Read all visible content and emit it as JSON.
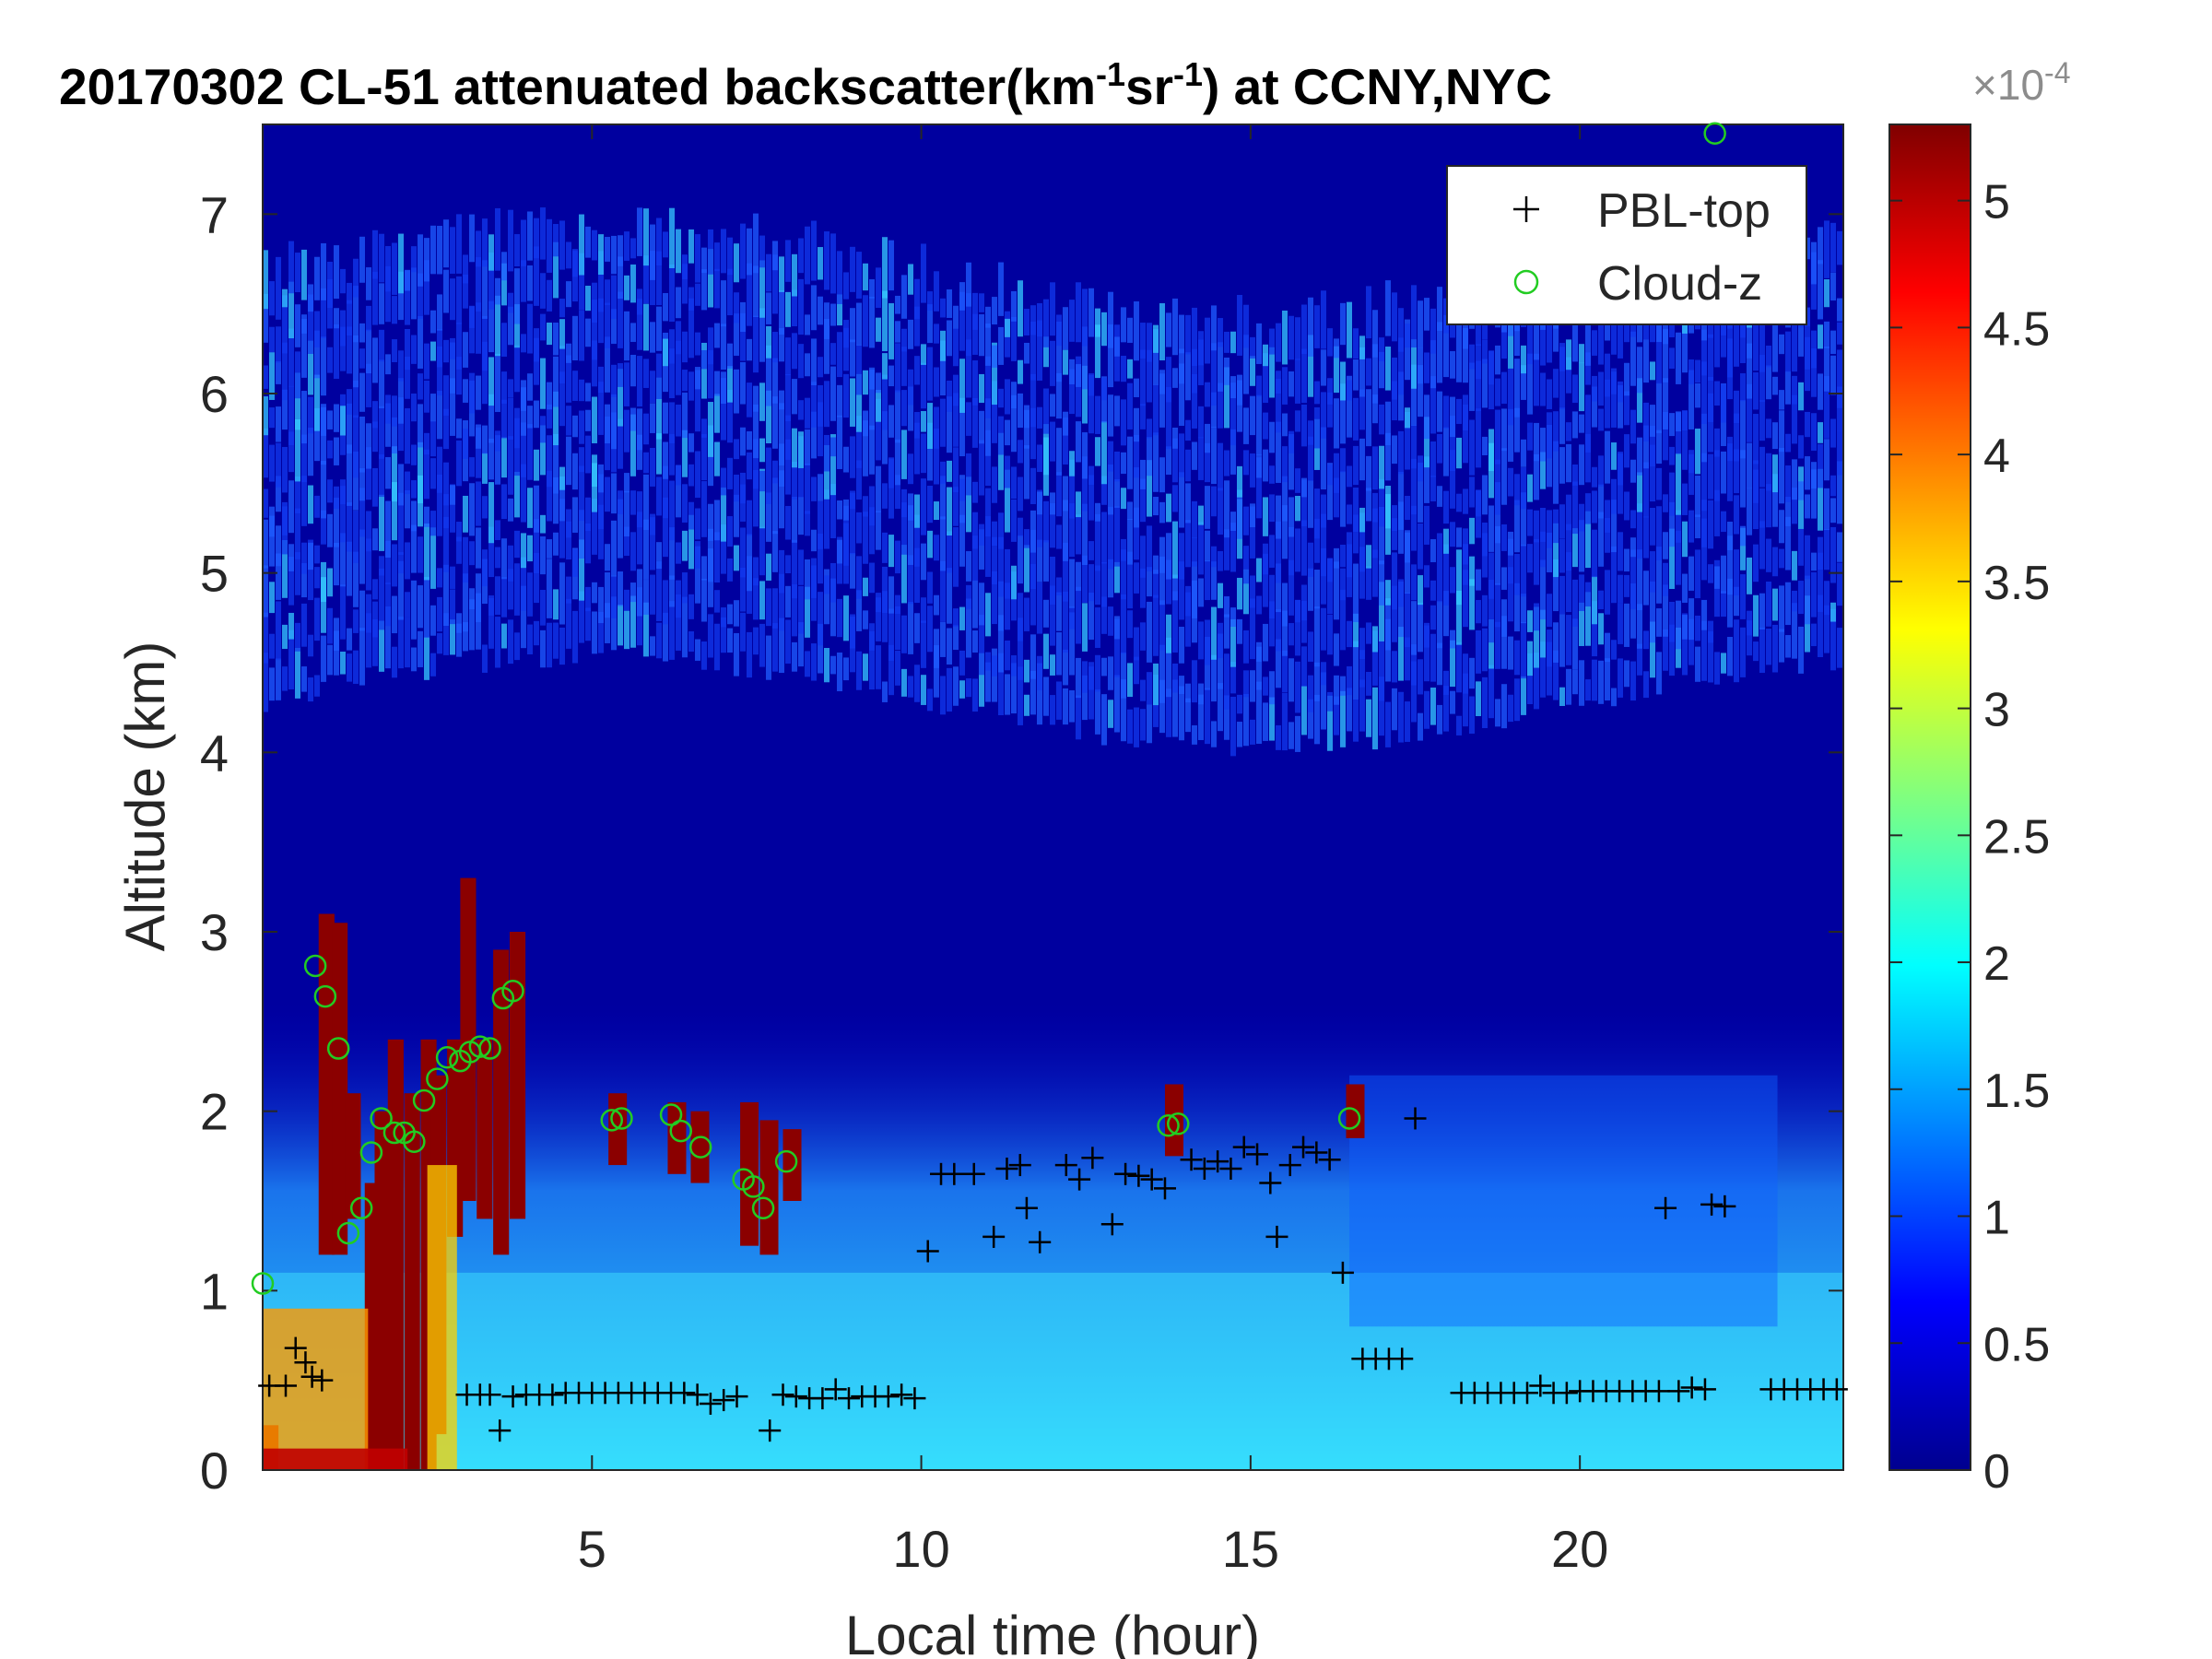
{
  "chart_data": {
    "type": "heatmap",
    "title": {
      "prefix": "20170302  CL-51 attenuated backscatter(km",
      "sup1": "-1",
      "middle": "sr",
      "sup2": "-1",
      "suffix": ") at CCNY,NYC"
    },
    "xlabel": "Local time (hour)",
    "ylabel": "Altitude (km)",
    "xlim": [
      0,
      24
    ],
    "ylim": [
      0,
      7.5
    ],
    "x_ticks": [
      5,
      10,
      15,
      20
    ],
    "y_ticks": [
      0,
      1,
      2,
      3,
      4,
      5,
      6,
      7
    ],
    "colorbar": {
      "range": [
        0,
        5.3
      ],
      "ticks": [
        0,
        0.5,
        1,
        1.5,
        2,
        2.5,
        3,
        3.5,
        4,
        4.5,
        5
      ],
      "tick_labels": [
        "0",
        "0.5",
        "1",
        "1.5",
        "2",
        "2.5",
        "3",
        "3.5",
        "4",
        "4.5",
        "5"
      ],
      "exponent_label": "×10",
      "exponent_sup": "-4",
      "colormap": "jet"
    },
    "legend": {
      "placement": "top-right",
      "entries": [
        {
          "name": "PBL-top",
          "marker": "+",
          "color": "#000000"
        },
        {
          "name": "Cloud-z",
          "marker": "o",
          "color": "#22cc22"
        }
      ]
    },
    "series": [
      {
        "name": "PBL-top",
        "points": [
          [
            0.1,
            0.47
          ],
          [
            0.35,
            0.47
          ],
          [
            0.5,
            0.68
          ],
          [
            0.65,
            0.6
          ],
          [
            0.75,
            0.52
          ],
          [
            0.9,
            0.5
          ],
          [
            3.1,
            0.42
          ],
          [
            3.3,
            0.42
          ],
          [
            3.45,
            0.42
          ],
          [
            3.6,
            0.22
          ],
          [
            3.8,
            0.41
          ],
          [
            4.0,
            0.42
          ],
          [
            4.2,
            0.42
          ],
          [
            4.4,
            0.42
          ],
          [
            4.6,
            0.43
          ],
          [
            4.8,
            0.43
          ],
          [
            5.0,
            0.43
          ],
          [
            5.2,
            0.43
          ],
          [
            5.4,
            0.43
          ],
          [
            5.6,
            0.43
          ],
          [
            5.8,
            0.43
          ],
          [
            6.0,
            0.43
          ],
          [
            6.2,
            0.43
          ],
          [
            6.4,
            0.43
          ],
          [
            6.6,
            0.42
          ],
          [
            6.8,
            0.37
          ],
          [
            7.0,
            0.39
          ],
          [
            7.2,
            0.41
          ],
          [
            7.7,
            0.22
          ],
          [
            7.9,
            0.42
          ],
          [
            8.1,
            0.41
          ],
          [
            8.3,
            0.4
          ],
          [
            8.5,
            0.4
          ],
          [
            8.7,
            0.45
          ],
          [
            8.9,
            0.4
          ],
          [
            9.1,
            0.41
          ],
          [
            9.3,
            0.41
          ],
          [
            9.5,
            0.41
          ],
          [
            9.7,
            0.42
          ],
          [
            9.9,
            0.4
          ],
          [
            10.1,
            1.22
          ],
          [
            10.3,
            1.65
          ],
          [
            10.5,
            1.65
          ],
          [
            10.8,
            1.65
          ],
          [
            11.1,
            1.3
          ],
          [
            11.3,
            1.68
          ],
          [
            11.5,
            1.7
          ],
          [
            11.6,
            1.46
          ],
          [
            11.8,
            1.27
          ],
          [
            12.2,
            1.7
          ],
          [
            12.4,
            1.62
          ],
          [
            12.6,
            1.74
          ],
          [
            12.9,
            1.37
          ],
          [
            13.1,
            1.65
          ],
          [
            13.3,
            1.64
          ],
          [
            13.5,
            1.62
          ],
          [
            13.7,
            1.57
          ],
          [
            14.1,
            1.73
          ],
          [
            14.3,
            1.68
          ],
          [
            14.5,
            1.72
          ],
          [
            14.7,
            1.68
          ],
          [
            14.9,
            1.8
          ],
          [
            15.1,
            1.76
          ],
          [
            15.3,
            1.6
          ],
          [
            15.4,
            1.3
          ],
          [
            15.6,
            1.7
          ],
          [
            15.8,
            1.8
          ],
          [
            16.0,
            1.77
          ],
          [
            16.2,
            1.73
          ],
          [
            16.4,
            1.1
          ],
          [
            16.7,
            0.62
          ],
          [
            16.9,
            0.62
          ],
          [
            17.1,
            0.62
          ],
          [
            17.3,
            0.62
          ],
          [
            17.5,
            1.96
          ],
          [
            18.2,
            0.43
          ],
          [
            18.4,
            0.43
          ],
          [
            18.6,
            0.43
          ],
          [
            18.8,
            0.43
          ],
          [
            19.0,
            0.43
          ],
          [
            19.2,
            0.43
          ],
          [
            19.4,
            0.47
          ],
          [
            19.6,
            0.43
          ],
          [
            19.8,
            0.43
          ],
          [
            20.0,
            0.44
          ],
          [
            20.2,
            0.44
          ],
          [
            20.4,
            0.44
          ],
          [
            20.6,
            0.44
          ],
          [
            20.8,
            0.44
          ],
          [
            21.0,
            0.44
          ],
          [
            21.2,
            0.44
          ],
          [
            21.3,
            1.46
          ],
          [
            21.5,
            0.44
          ],
          [
            21.7,
            0.46
          ],
          [
            21.9,
            0.45
          ],
          [
            22.0,
            1.48
          ],
          [
            22.2,
            1.47
          ],
          [
            22.9,
            0.45
          ],
          [
            23.1,
            0.45
          ],
          [
            23.3,
            0.45
          ],
          [
            23.5,
            0.45
          ],
          [
            23.7,
            0.45
          ],
          [
            23.9,
            0.45
          ]
        ]
      },
      {
        "name": "Cloud-z",
        "points": [
          [
            0.0,
            1.04
          ],
          [
            0.8,
            2.81
          ],
          [
            0.95,
            2.64
          ],
          [
            1.15,
            2.35
          ],
          [
            1.3,
            1.32
          ],
          [
            1.5,
            1.46
          ],
          [
            1.65,
            1.77
          ],
          [
            1.8,
            1.96
          ],
          [
            2.0,
            1.88
          ],
          [
            2.15,
            1.88
          ],
          [
            2.3,
            1.83
          ],
          [
            2.45,
            2.06
          ],
          [
            2.65,
            2.18
          ],
          [
            2.8,
            2.3
          ],
          [
            3.0,
            2.28
          ],
          [
            3.15,
            2.33
          ],
          [
            3.3,
            2.36
          ],
          [
            3.45,
            2.35
          ],
          [
            3.65,
            2.63
          ],
          [
            3.8,
            2.67
          ],
          [
            5.3,
            1.95
          ],
          [
            5.45,
            1.96
          ],
          [
            6.2,
            1.98
          ],
          [
            6.35,
            1.89
          ],
          [
            6.65,
            1.8
          ],
          [
            7.3,
            1.62
          ],
          [
            7.45,
            1.58
          ],
          [
            7.6,
            1.46
          ],
          [
            7.95,
            1.72
          ],
          [
            13.75,
            1.92
          ],
          [
            13.9,
            1.93
          ],
          [
            16.5,
            1.96
          ],
          [
            22.05,
            7.45
          ]
        ]
      }
    ]
  }
}
